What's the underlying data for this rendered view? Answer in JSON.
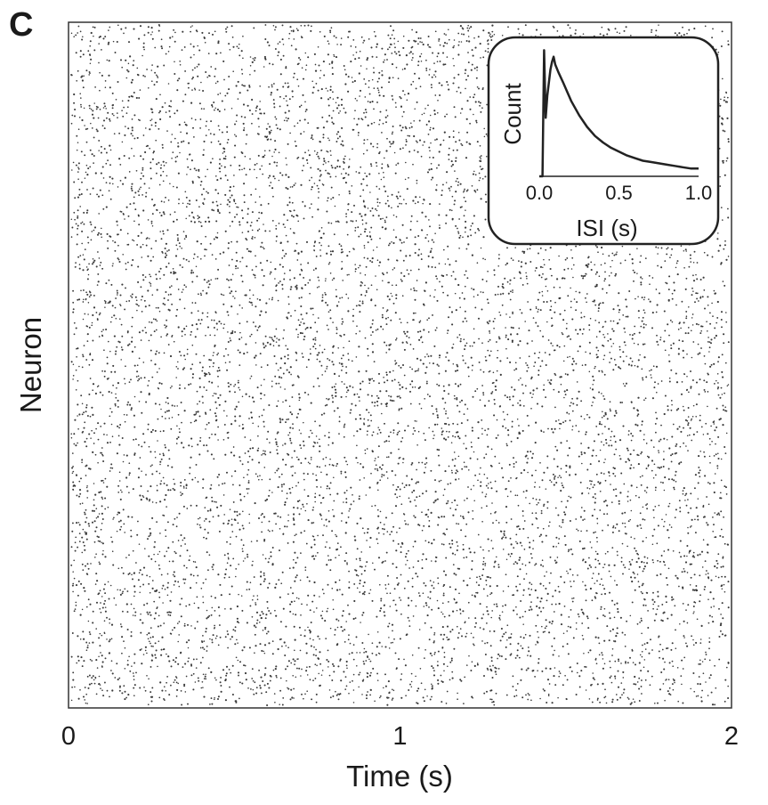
{
  "panel_label": "C",
  "chart_data": [
    {
      "type": "scatter",
      "subtype": "raster",
      "xlabel": "Time (s)",
      "ylabel": "Neuron",
      "xlim": [
        0,
        2
      ],
      "xticks": [
        {
          "value": 0,
          "label": "0"
        },
        {
          "value": 1,
          "label": "1"
        },
        {
          "value": 2,
          "label": "2"
        }
      ],
      "yticks": [],
      "grid": false,
      "marker": "dot",
      "color": "#3a3a3a",
      "approx_spike_count": 9000,
      "distribution": "irregular asynchronous firing, uniform over time and neurons"
    },
    {
      "type": "line",
      "subtype": "histogram",
      "position": "inset top-right",
      "xlabel": "ISI (s)",
      "ylabel": "Count",
      "xlim": [
        0,
        1.0
      ],
      "xticks": [
        {
          "value": 0.0,
          "label": "0.0"
        },
        {
          "value": 0.5,
          "label": "0.5"
        },
        {
          "value": 1.0,
          "label": "1.0"
        }
      ],
      "yticks": [],
      "ylim": [
        0,
        1
      ],
      "x": [
        0.0,
        0.02,
        0.03,
        0.04,
        0.05,
        0.07,
        0.08,
        0.09,
        0.1,
        0.12,
        0.15,
        0.2,
        0.25,
        0.3,
        0.35,
        0.4,
        0.45,
        0.5,
        0.55,
        0.6,
        0.65,
        0.7,
        0.75,
        0.8,
        0.85,
        0.9,
        0.95,
        1.0
      ],
      "y": [
        0.0,
        0.0,
        0.97,
        0.45,
        0.62,
        0.82,
        0.88,
        0.92,
        0.86,
        0.8,
        0.72,
        0.58,
        0.47,
        0.38,
        0.31,
        0.26,
        0.22,
        0.19,
        0.16,
        0.14,
        0.12,
        0.11,
        0.1,
        0.09,
        0.08,
        0.07,
        0.06,
        0.06
      ]
    }
  ]
}
